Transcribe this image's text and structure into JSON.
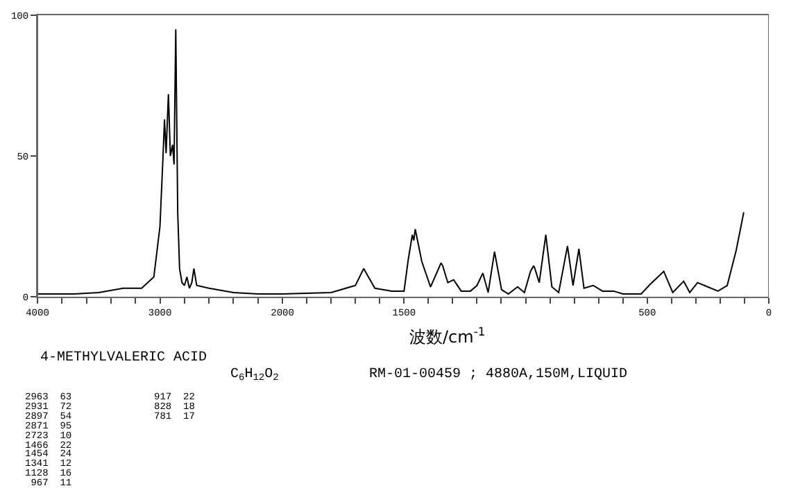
{
  "chart_data": [
    {
      "type": "line",
      "xlim": [
        4000,
        2000
      ],
      "ylim": [
        0,
        100
      ],
      "xticks": [
        4000,
        {
          "value": 3800,
          "label": null
        },
        {
          "value": 3600,
          "label": null
        },
        {
          "value": 3400,
          "label": null
        },
        {
          "value": 3200,
          "label": null
        },
        3000,
        {
          "value": 2800,
          "label": null
        },
        {
          "value": 2600,
          "label": null
        },
        {
          "value": 2400,
          "label": null
        },
        {
          "value": 2200,
          "label": null
        },
        2000
      ],
      "yticks": [
        0,
        50,
        100
      ],
      "marker": "none",
      "line_style": "solid",
      "series": [
        {
          "color": "#000000",
          "x": [
            4000,
            3700,
            3500,
            3300,
            3150,
            3050,
            3000,
            2975,
            2963,
            2950,
            2931,
            2915,
            2897,
            2885,
            2871,
            2855,
            2840,
            2820,
            2800,
            2780,
            2760,
            2740,
            2723,
            2700,
            2600,
            2400,
            2200,
            2000
          ],
          "values": [
            1,
            1,
            1.5,
            3,
            3,
            7,
            25,
            50,
            63,
            51,
            72,
            50,
            54,
            47,
            95,
            30,
            10,
            5,
            4,
            7,
            3,
            5,
            10,
            4,
            3,
            1.5,
            1,
            1
          ]
        }
      ],
      "annotations": [
        "4-METHYLVALERIC ACID",
        "C$_{6}$H$_{12}$O$_{2}$",
        "RM-01-00459 ; 4880A,150M,LIQUID",
        "2963  63",
        "2931  72",
        "2897  54",
        "2871  95",
        "2723  10",
        "1466  22",
        "1454  24",
        "1341  12",
        "1128  16",
        " 967  11",
        "917  22",
        "828  18",
        "781  17"
      ]
    },
    {
      "type": "line",
      "xlabel": "波数/cm$^{-1}$",
      "xlim": [
        2000,
        0
      ],
      "ylim": [
        0,
        100
      ],
      "xticks": [
        {
          "value": 1900,
          "label": null
        },
        {
          "value": 1800,
          "label": null
        },
        {
          "value": 1700,
          "label": null
        },
        {
          "value": 1600,
          "label": null
        },
        1500,
        {
          "value": 1400,
          "label": null
        },
        {
          "value": 1300,
          "label": null
        },
        {
          "value": 1200,
          "label": null
        },
        {
          "value": 1100,
          "label": null
        },
        {
          "value": 1000,
          "label": null
        },
        {
          "value": 900,
          "label": null
        },
        {
          "value": 800,
          "label": null
        },
        {
          "value": 700,
          "label": null
        },
        {
          "value": 600,
          "label": null
        },
        500,
        {
          "value": 400,
          "label": null
        },
        {
          "value": 300,
          "label": null
        },
        {
          "value": 200,
          "label": null
        },
        {
          "value": 100,
          "label": null
        },
        0
      ],
      "tick_labels": "x",
      "marker": "none",
      "line_style": "solid",
      "series": [
        {
          "color": "#000000",
          "x": [
            2000,
            1800,
            1700,
            1666,
            1620,
            1550,
            1500,
            1483,
            1466,
            1460,
            1454,
            1427,
            1391,
            1348,
            1341,
            1320,
            1296,
            1265,
            1227,
            1200,
            1176,
            1154,
            1128,
            1099,
            1071,
            1033,
            1005,
            980,
            967,
            962,
            944,
            917,
            892,
            864,
            828,
            805,
            781,
            760,
            722,
            684,
            638,
            600,
            525,
            487,
            432,
            395,
            350,
            325,
            293,
            265,
            209,
            171,
            134,
            103
          ],
          "values": [
            1,
            1.5,
            4,
            10,
            3,
            2,
            2,
            13,
            22,
            20,
            24,
            12.5,
            3.5,
            12,
            11,
            5,
            6,
            2,
            2,
            4,
            8.4,
            1.5,
            16,
            2.5,
            1,
            3.5,
            1.5,
            9,
            11,
            10,
            5,
            22,
            3.5,
            1.5,
            18,
            4,
            17,
            3,
            4,
            2,
            2,
            1,
            1,
            4.5,
            9,
            1.5,
            5.5,
            1.5,
            5,
            4,
            2,
            4,
            16.5,
            30
          ]
        }
      ]
    }
  ]
}
